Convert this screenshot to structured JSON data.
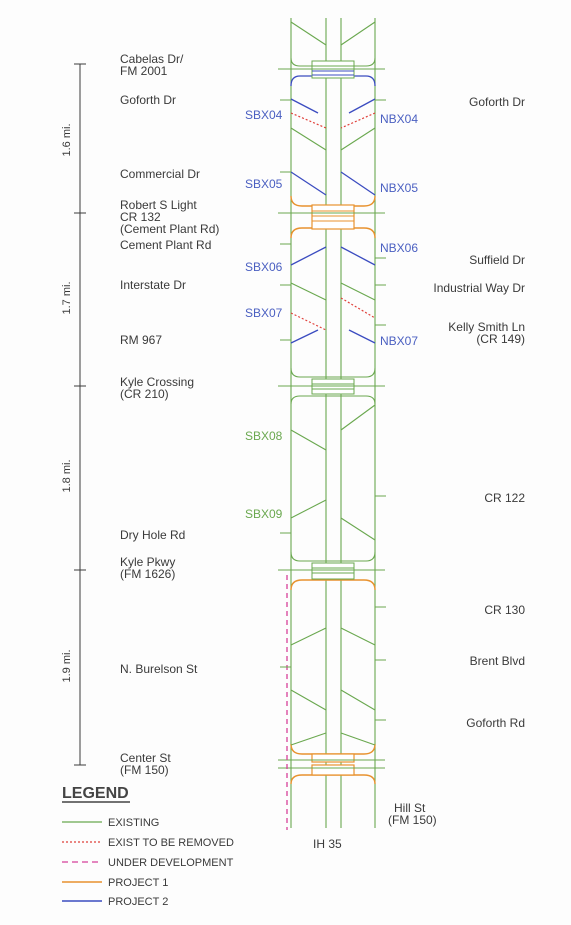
{
  "left_labels": [
    {
      "id": "cabelas",
      "lines": [
        "Cabelas Dr/",
        "FM 2001"
      ]
    },
    {
      "id": "goforth-dr-left",
      "lines": [
        "Goforth Dr"
      ]
    },
    {
      "id": "commercial-dr",
      "lines": [
        "Commercial Dr"
      ]
    },
    {
      "id": "robert-s-light",
      "lines": [
        "Robert S Light",
        "CR 132",
        "(Cement Plant Rd)"
      ]
    },
    {
      "id": "cement-plant-rd",
      "lines": [
        "Cement Plant Rd"
      ]
    },
    {
      "id": "interstate-dr",
      "lines": [
        "Interstate Dr"
      ]
    },
    {
      "id": "rm-967",
      "lines": [
        "RM 967"
      ]
    },
    {
      "id": "kyle-crossing",
      "lines": [
        "Kyle Crossing",
        "(CR 210)"
      ]
    },
    {
      "id": "dry-hole-rd",
      "lines": [
        "Dry Hole Rd"
      ]
    },
    {
      "id": "kyle-pkwy",
      "lines": [
        "Kyle Pkwy",
        "(FM 1626)"
      ]
    },
    {
      "id": "n-burelson",
      "lines": [
        "N. Burelson St"
      ]
    },
    {
      "id": "center-st",
      "lines": [
        "Center St",
        "(FM 150)"
      ]
    }
  ],
  "right_labels": [
    {
      "id": "goforth-dr-right",
      "lines": [
        "Goforth Dr"
      ]
    },
    {
      "id": "suffield-dr",
      "lines": [
        "Suffield Dr"
      ]
    },
    {
      "id": "industrial-way",
      "lines": [
        "Industrial Way Dr"
      ]
    },
    {
      "id": "kelly-smith",
      "lines": [
        "Kelly Smith Ln",
        "(CR 149)"
      ]
    },
    {
      "id": "cr-122",
      "lines": [
        "CR 122"
      ]
    },
    {
      "id": "cr-130",
      "lines": [
        "CR 130"
      ]
    },
    {
      "id": "brent-blvd",
      "lines": [
        "Brent Blvd"
      ]
    },
    {
      "id": "goforth-rd",
      "lines": [
        "Goforth Rd"
      ]
    },
    {
      "id": "hill-st",
      "lines": [
        "Hill St",
        "(FM 150)"
      ]
    }
  ],
  "ramp_labels": [
    {
      "id": "sbx04",
      "text": "SBX04",
      "status": "project2"
    },
    {
      "id": "nbx04",
      "text": "NBX04",
      "status": "project2"
    },
    {
      "id": "sbx05",
      "text": "SBX05",
      "status": "project2"
    },
    {
      "id": "nbx05",
      "text": "NBX05",
      "status": "project2"
    },
    {
      "id": "nbx06",
      "text": "NBX06",
      "status": "project2"
    },
    {
      "id": "sbx06",
      "text": "SBX06",
      "status": "project2"
    },
    {
      "id": "sbx07",
      "text": "SBX07",
      "status": "project2"
    },
    {
      "id": "nbx07",
      "text": "NBX07",
      "status": "project2"
    },
    {
      "id": "sbx08",
      "text": "SBX08",
      "status": "existing"
    },
    {
      "id": "sbx09",
      "text": "SBX09",
      "status": "existing"
    }
  ],
  "distances": [
    "1.6 mi.",
    "1.7 mi.",
    "1.8 mi.",
    "1.9 mi."
  ],
  "highway_label": "IH 35",
  "legend": {
    "title": "LEGEND",
    "items": [
      {
        "label": "EXISTING",
        "color": "#6aa84f",
        "style": "solid"
      },
      {
        "label": "EXIST TO BE REMOVED",
        "color": "#e0403a",
        "style": "dotted"
      },
      {
        "label": "UNDER DEVELOPMENT",
        "color": "#d6409a",
        "style": "dashed"
      },
      {
        "label": "PROJECT 1",
        "color": "#e8922e",
        "style": "solid"
      },
      {
        "label": "PROJECT 2",
        "color": "#3b4cc0",
        "style": "solid"
      }
    ]
  },
  "colors": {
    "existing": "#6aa84f",
    "removed": "#e0403a",
    "under_development": "#d6409a",
    "project1": "#e8922e",
    "project2": "#3b4cc0",
    "ink": "#3a3a3a"
  }
}
